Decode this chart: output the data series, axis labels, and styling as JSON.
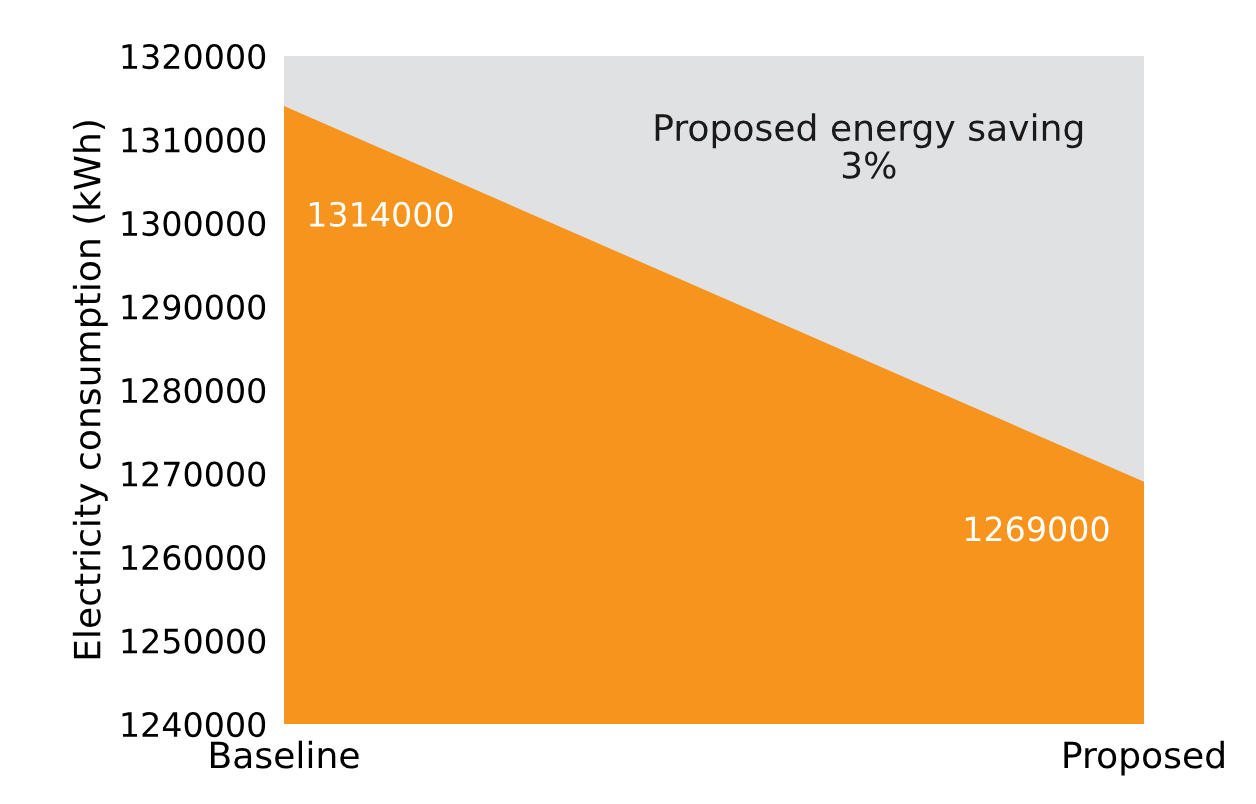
{
  "chart_data": {
    "type": "area",
    "ylabel": "Electricity consumption (kWh)",
    "categories": [
      "Baseline",
      "Proposed"
    ],
    "series": [
      {
        "color": "#f7941d",
        "values": [
          1314000,
          1269000
        ]
      }
    ],
    "bands": [
      {
        "axis": "y",
        "from": 1269000,
        "to": 1320000,
        "color": "#e0e1e3"
      }
    ],
    "ylim": [
      1240000,
      1320000
    ],
    "yticks": [
      1240000,
      1250000,
      1260000,
      1270000,
      1280000,
      1290000,
      1300000,
      1310000,
      1320000
    ],
    "annotations": [
      "Proposed energy saving\n3%"
    ],
    "data_labels": true,
    "grid": false,
    "legend": false
  }
}
